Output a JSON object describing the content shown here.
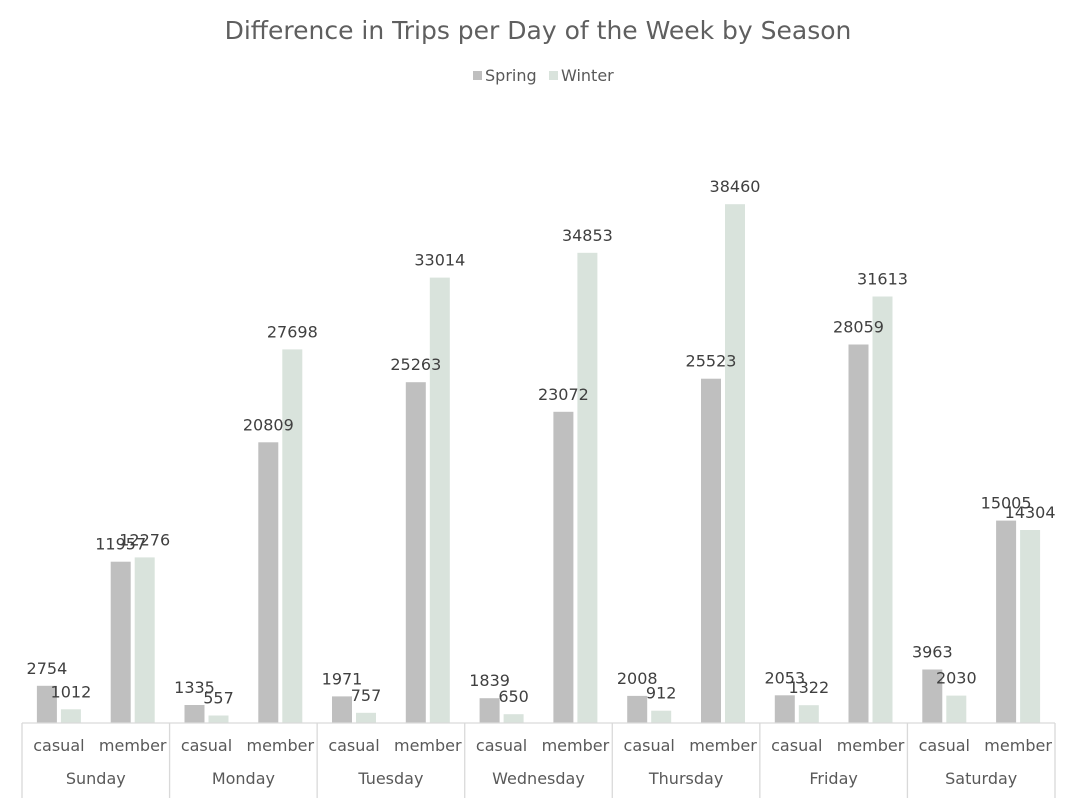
{
  "chart_data": {
    "type": "bar",
    "title": "Difference in Trips per Day of the Week by Season",
    "legend_position": "top",
    "grid": false,
    "ylim": [
      0,
      40000
    ],
    "groups": [
      "Sunday",
      "Monday",
      "Tuesday",
      "Wednesday",
      "Thursday",
      "Friday",
      "Saturday"
    ],
    "subcategories": [
      "casual",
      "member"
    ],
    "series": [
      {
        "name": "Spring",
        "color": "#bfbfbf",
        "values": [
          2754,
          11957,
          1335,
          20809,
          1971,
          25263,
          1839,
          23072,
          2008,
          25523,
          2053,
          28059,
          3963,
          15005
        ]
      },
      {
        "name": "Winter",
        "color": "#d9e3dc",
        "values": [
          1012,
          12276,
          557,
          27698,
          757,
          33014,
          650,
          34853,
          912,
          38460,
          1322,
          31613,
          2030,
          14304
        ]
      }
    ]
  }
}
